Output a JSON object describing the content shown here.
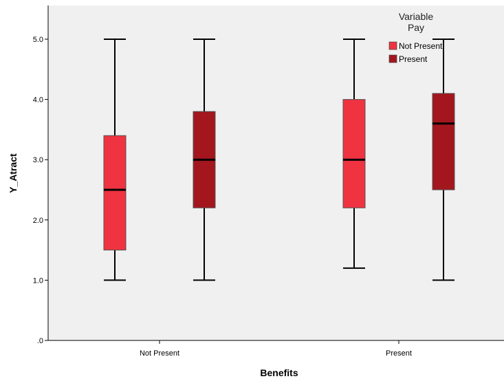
{
  "chart_data": {
    "type": "boxplot",
    "title": "",
    "xlabel": "Benefits",
    "ylabel": "Y_Atract",
    "ylim": [
      0,
      5.5
    ],
    "yticks": [
      0,
      1,
      2,
      3,
      4,
      5
    ],
    "ytick_labels": [
      ".0",
      "1.0",
      "2.0",
      "3.0",
      "4.0",
      "5.0"
    ],
    "categories": [
      "Not Present",
      "Present"
    ],
    "legend": {
      "title_line1": "Variable",
      "title_line2": "Pay",
      "placement": "top-right",
      "entries": [
        "Not Present",
        "Present"
      ]
    },
    "series": [
      {
        "name": "Not Present",
        "color": "#ef3340",
        "boxes": [
          {
            "min": 1.0,
            "q1": 1.5,
            "median": 2.5,
            "q3": 3.4,
            "max": 5.0
          },
          {
            "min": 1.2,
            "q1": 2.2,
            "median": 3.0,
            "q3": 4.0,
            "max": 5.0
          }
        ]
      },
      {
        "name": "Present",
        "color": "#a3161d",
        "boxes": [
          {
            "min": 1.0,
            "q1": 2.2,
            "median": 3.0,
            "q3": 3.8,
            "max": 5.0
          },
          {
            "min": 1.0,
            "q1": 2.5,
            "median": 3.6,
            "q3": 4.1,
            "max": 5.0
          }
        ]
      }
    ],
    "grid": false,
    "plot_background": "#f0f0f0"
  }
}
